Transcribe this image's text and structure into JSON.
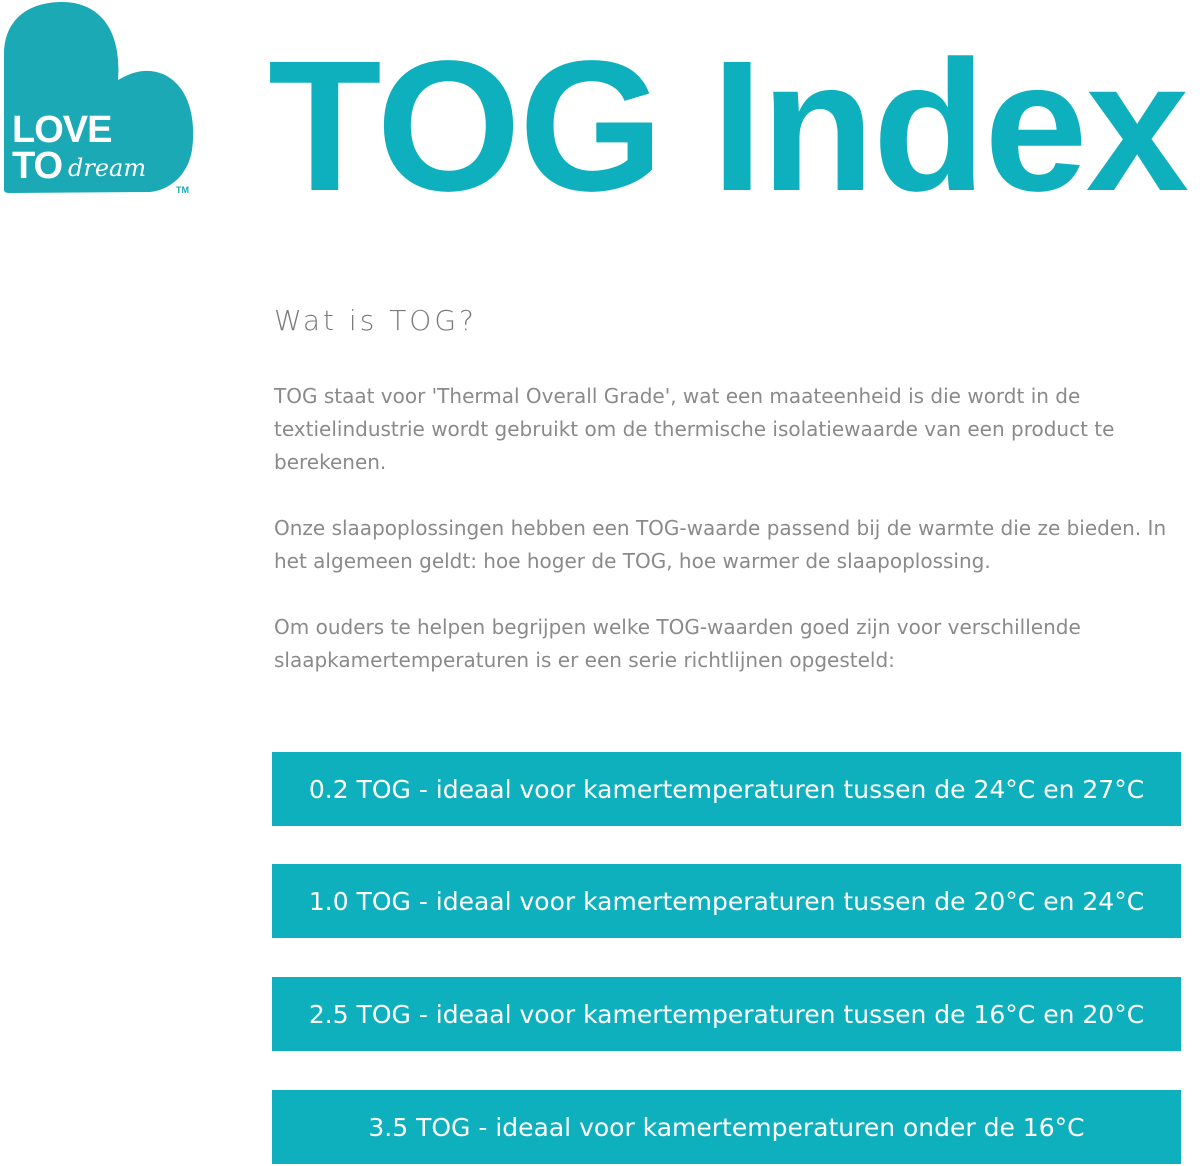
{
  "colors": {
    "brand": "#0fb0be",
    "logo": "#1ba9b6"
  },
  "logo": {
    "line1": "LOVE",
    "line2": "TO",
    "script": "dream",
    "tm": "TM"
  },
  "header": {
    "title": "TOG Index"
  },
  "content": {
    "heading": "Wat is TOG?",
    "paragraphs": [
      "TOG staat voor 'Thermal Overall Grade', wat een maateenheid is die wordt in de textielindustrie wordt gebruikt om de thermische isolatiewaarde van een product te berekenen.",
      "Onze slaapoplossingen hebben een TOG-waarde passend bij de warmte die ze bieden. In het algemeen geldt: hoe hoger de TOG, hoe warmer de slaapoplossing.",
      "Om ouders te helpen begrijpen welke TOG-waarden goed zijn voor verschillende slaapkamertemperaturen is er een serie richtlijnen opgesteld:"
    ],
    "guidelines": [
      "0.2 TOG - ideaal voor kamertemperaturen tussen de 24°C en 27°C",
      "1.0 TOG - ideaal voor kamertemperaturen tussen de 20°C en 24°C",
      "2.5 TOG - ideaal voor kamertemperaturen tussen de 16°C en 20°C",
      "3.5 TOG - ideaal voor kamertemperaturen onder de 16°C"
    ]
  }
}
